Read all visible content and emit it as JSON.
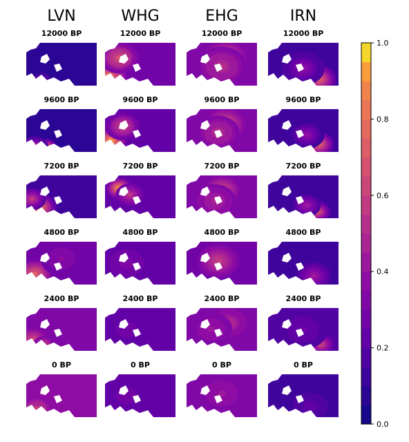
{
  "chart_data": {
    "type": "heatmap",
    "description_free": true,
    "columns": [
      "LVN",
      "WHG",
      "EHG",
      "IRN"
    ],
    "time_labels": [
      "12000 BP",
      "9600 BP",
      "7200 BP",
      "4800 BP",
      "2400 BP",
      "0 BP"
    ],
    "colorbar": {
      "range": [
        0.0,
        1.0
      ],
      "ticks": [
        0.0,
        0.2,
        0.4,
        0.6,
        0.8,
        1.0
      ],
      "tick_labels": [
        "0.0",
        "0.2",
        "0.4",
        "0.6",
        "0.8",
        "1.0"
      ],
      "colormap": "plasma",
      "levels": 20
    },
    "panels": {
      "LVN": [
        {
          "time": "12000 BP",
          "background": 0.08,
          "blobs": [
            {
              "x": 0.22,
              "y": 0.9,
              "r": 0.15,
              "v": 0.3
            }
          ]
        },
        {
          "time": "9600 BP",
          "background": 0.08,
          "blobs": [
            {
              "x": 0.3,
              "y": 0.85,
              "r": 0.12,
              "v": 0.65
            },
            {
              "x": 0.12,
              "y": 0.9,
              "r": 0.2,
              "v": 0.5
            }
          ]
        },
        {
          "time": "7200 BP",
          "background": 0.1,
          "blobs": [
            {
              "x": 0.18,
              "y": 0.75,
              "r": 0.25,
              "v": 0.82
            },
            {
              "x": 0.08,
              "y": 0.55,
              "r": 0.2,
              "v": 0.55
            }
          ]
        },
        {
          "time": "4800 BP",
          "background": 0.25,
          "blobs": [
            {
              "x": 0.12,
              "y": 0.75,
              "r": 0.25,
              "v": 0.72
            },
            {
              "x": 0.5,
              "y": 0.4,
              "r": 0.3,
              "v": 0.35
            }
          ]
        },
        {
          "time": "2400 BP",
          "background": 0.3,
          "blobs": [
            {
              "x": 0.1,
              "y": 0.75,
              "r": 0.2,
              "v": 0.65
            },
            {
              "x": 0.25,
              "y": 0.85,
              "r": 0.15,
              "v": 0.55
            }
          ]
        },
        {
          "time": "0 BP",
          "background": 0.35,
          "blobs": [
            {
              "x": 0.15,
              "y": 0.8,
              "r": 0.2,
              "v": 0.55
            }
          ]
        }
      ],
      "WHG": [
        {
          "time": "12000 BP",
          "background": 0.25,
          "blobs": [
            {
              "x": 0.05,
              "y": 0.8,
              "r": 0.25,
              "v": 0.85
            },
            {
              "x": 0.2,
              "y": 0.35,
              "r": 0.28,
              "v": 0.65
            }
          ]
        },
        {
          "time": "9600 BP",
          "background": 0.22,
          "blobs": [
            {
              "x": 0.08,
              "y": 0.75,
              "r": 0.22,
              "v": 0.92
            },
            {
              "x": 0.25,
              "y": 0.4,
              "r": 0.25,
              "v": 0.6
            }
          ]
        },
        {
          "time": "7200 BP",
          "background": 0.2,
          "blobs": [
            {
              "x": 0.2,
              "y": 0.3,
              "r": 0.18,
              "v": 0.9
            },
            {
              "x": 0.35,
              "y": 0.45,
              "r": 0.2,
              "v": 0.55
            }
          ]
        },
        {
          "time": "4800 BP",
          "background": 0.22,
          "blobs": [
            {
              "x": 0.3,
              "y": 0.5,
              "r": 0.3,
              "v": 0.32
            }
          ]
        },
        {
          "time": "2400 BP",
          "background": 0.2,
          "blobs": [
            {
              "x": 0.3,
              "y": 0.5,
              "r": 0.3,
              "v": 0.28
            }
          ]
        },
        {
          "time": "0 BP",
          "background": 0.2,
          "blobs": [
            {
              "x": 0.3,
              "y": 0.5,
              "r": 0.3,
              "v": 0.28
            }
          ]
        }
      ],
      "EHG": [
        {
          "time": "12000 BP",
          "background": 0.3,
          "blobs": [
            {
              "x": 0.55,
              "y": 0.35,
              "r": 0.3,
              "v": 0.7
            },
            {
              "x": 0.5,
              "y": 0.55,
              "r": 0.35,
              "v": 0.5
            }
          ]
        },
        {
          "time": "9600 BP",
          "background": 0.3,
          "blobs": [
            {
              "x": 0.55,
              "y": 0.35,
              "r": 0.28,
              "v": 0.68
            },
            {
              "x": 0.45,
              "y": 0.55,
              "r": 0.3,
              "v": 0.5
            }
          ]
        },
        {
          "time": "7200 BP",
          "background": 0.3,
          "blobs": [
            {
              "x": 0.5,
              "y": 0.35,
              "r": 0.25,
              "v": 0.65
            },
            {
              "x": 0.4,
              "y": 0.6,
              "r": 0.3,
              "v": 0.45
            }
          ]
        },
        {
          "time": "4800 BP",
          "background": 0.28,
          "blobs": [
            {
              "x": 0.45,
              "y": 0.45,
              "r": 0.3,
              "v": 0.58
            }
          ]
        },
        {
          "time": "2400 BP",
          "background": 0.3,
          "blobs": [
            {
              "x": 0.6,
              "y": 0.35,
              "r": 0.3,
              "v": 0.48
            },
            {
              "x": 0.35,
              "y": 0.5,
              "r": 0.3,
              "v": 0.42
            }
          ]
        },
        {
          "time": "0 BP",
          "background": 0.3,
          "blobs": [
            {
              "x": 0.5,
              "y": 0.45,
              "r": 0.35,
              "v": 0.42
            }
          ]
        }
      ],
      "IRN": [
        {
          "time": "12000 BP",
          "background": 0.12,
          "blobs": [
            {
              "x": 0.72,
              "y": 0.85,
              "r": 0.25,
              "v": 0.7
            },
            {
              "x": 0.5,
              "y": 0.6,
              "r": 0.3,
              "v": 0.35
            }
          ]
        },
        {
          "time": "9600 BP",
          "background": 0.1,
          "blobs": [
            {
              "x": 0.72,
              "y": 0.82,
              "r": 0.22,
              "v": 0.72
            },
            {
              "x": 0.55,
              "y": 0.6,
              "r": 0.25,
              "v": 0.35
            }
          ]
        },
        {
          "time": "7200 BP",
          "background": 0.1,
          "blobs": [
            {
              "x": 0.7,
              "y": 0.85,
              "r": 0.2,
              "v": 0.68
            },
            {
              "x": 0.55,
              "y": 0.7,
              "r": 0.2,
              "v": 0.4
            }
          ]
        },
        {
          "time": "4800 BP",
          "background": 0.12,
          "blobs": [
            {
              "x": 0.65,
              "y": 0.8,
              "r": 0.25,
              "v": 0.42
            }
          ]
        },
        {
          "time": "2400 BP",
          "background": 0.15,
          "blobs": [
            {
              "x": 0.75,
              "y": 0.85,
              "r": 0.2,
              "v": 0.58
            },
            {
              "x": 0.5,
              "y": 0.5,
              "r": 0.35,
              "v": 0.25
            }
          ]
        },
        {
          "time": "0 BP",
          "background": 0.12,
          "blobs": [
            {
              "x": 0.6,
              "y": 0.75,
              "r": 0.3,
              "v": 0.22
            }
          ]
        }
      ]
    }
  }
}
